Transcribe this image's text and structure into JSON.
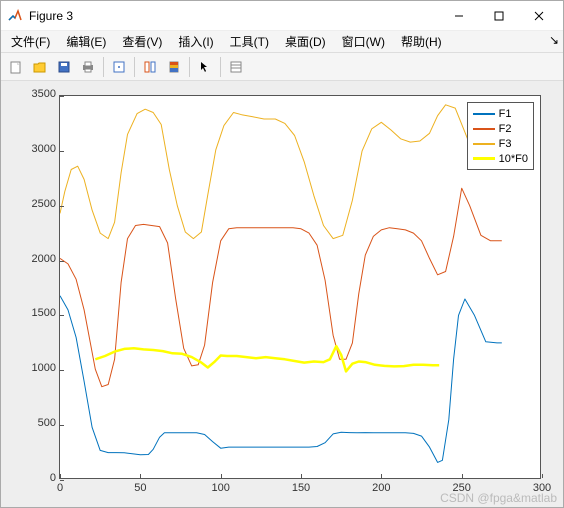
{
  "window": {
    "title": "Figure 3"
  },
  "menu": {
    "items": [
      "文件(F)",
      "编辑(E)",
      "查看(V)",
      "插入(I)",
      "工具(T)",
      "桌面(D)",
      "窗口(W)",
      "帮助(H)"
    ]
  },
  "toolbar": {
    "icons": [
      "new",
      "open",
      "save",
      "print",
      "sep",
      "edit",
      "sep",
      "link",
      "colorbar",
      "sep",
      "cursor",
      "sep",
      "datatip"
    ]
  },
  "chart": {
    "type": "line",
    "background_color": "#ffffff",
    "plot_bg": "#eeeeee",
    "axes_color": "#555555",
    "xlim": [
      0,
      300
    ],
    "ylim": [
      0,
      3500
    ],
    "xticks": [
      0,
      50,
      100,
      150,
      200,
      250,
      300
    ],
    "yticks": [
      0,
      500,
      1000,
      1500,
      2000,
      2500,
      3000,
      3500
    ],
    "tick_fontsize": 11,
    "legend": {
      "position": "northeast",
      "items": [
        {
          "label": "F1",
          "color": "#0072bd"
        },
        {
          "label": "F2",
          "color": "#d95319"
        },
        {
          "label": "F3",
          "color": "#edb120"
        },
        {
          "label": "10*F0",
          "color": "#ffff00"
        }
      ]
    },
    "series": [
      {
        "name": "F1",
        "color": "#0072bd",
        "linewidth": 1,
        "data": [
          [
            0,
            1680
          ],
          [
            5,
            1550
          ],
          [
            10,
            1300
          ],
          [
            15,
            900
          ],
          [
            20,
            480
          ],
          [
            25,
            270
          ],
          [
            30,
            250
          ],
          [
            35,
            250
          ],
          [
            40,
            248
          ],
          [
            45,
            240
          ],
          [
            50,
            230
          ],
          [
            55,
            232
          ],
          [
            58,
            280
          ],
          [
            62,
            390
          ],
          [
            65,
            430
          ],
          [
            70,
            430
          ],
          [
            75,
            430
          ],
          [
            80,
            430
          ],
          [
            85,
            430
          ],
          [
            90,
            415
          ],
          [
            95,
            350
          ],
          [
            100,
            290
          ],
          [
            105,
            300
          ],
          [
            110,
            300
          ],
          [
            115,
            300
          ],
          [
            120,
            300
          ],
          [
            125,
            300
          ],
          [
            130,
            300
          ],
          [
            135,
            300
          ],
          [
            140,
            300
          ],
          [
            145,
            300
          ],
          [
            150,
            300
          ],
          [
            155,
            300
          ],
          [
            160,
            305
          ],
          [
            165,
            340
          ],
          [
            170,
            420
          ],
          [
            175,
            435
          ],
          [
            180,
            432
          ],
          [
            185,
            430
          ],
          [
            190,
            432
          ],
          [
            195,
            430
          ],
          [
            200,
            430
          ],
          [
            205,
            430
          ],
          [
            210,
            430
          ],
          [
            215,
            430
          ],
          [
            220,
            425
          ],
          [
            225,
            400
          ],
          [
            230,
            300
          ],
          [
            235,
            160
          ],
          [
            238,
            180
          ],
          [
            242,
            550
          ],
          [
            245,
            1100
          ],
          [
            248,
            1500
          ],
          [
            252,
            1650
          ],
          [
            258,
            1500
          ],
          [
            265,
            1260
          ],
          [
            272,
            1250
          ],
          [
            275,
            1250
          ]
        ]
      },
      {
        "name": "F2",
        "color": "#d95319",
        "linewidth": 1,
        "data": [
          [
            0,
            2020
          ],
          [
            5,
            1970
          ],
          [
            10,
            1830
          ],
          [
            15,
            1550
          ],
          [
            22,
            1010
          ],
          [
            26,
            850
          ],
          [
            30,
            870
          ],
          [
            34,
            1100
          ],
          [
            38,
            1800
          ],
          [
            42,
            2200
          ],
          [
            47,
            2320
          ],
          [
            52,
            2330
          ],
          [
            57,
            2320
          ],
          [
            62,
            2310
          ],
          [
            67,
            2160
          ],
          [
            72,
            1650
          ],
          [
            77,
            1200
          ],
          [
            82,
            1040
          ],
          [
            86,
            1050
          ],
          [
            90,
            1230
          ],
          [
            95,
            1800
          ],
          [
            100,
            2180
          ],
          [
            105,
            2290
          ],
          [
            110,
            2300
          ],
          [
            115,
            2300
          ],
          [
            120,
            2300
          ],
          [
            125,
            2300
          ],
          [
            130,
            2300
          ],
          [
            135,
            2300
          ],
          [
            140,
            2300
          ],
          [
            145,
            2300
          ],
          [
            150,
            2290
          ],
          [
            155,
            2250
          ],
          [
            160,
            2140
          ],
          [
            165,
            1820
          ],
          [
            170,
            1320
          ],
          [
            174,
            1100
          ],
          [
            178,
            1100
          ],
          [
            182,
            1250
          ],
          [
            186,
            1700
          ],
          [
            190,
            2050
          ],
          [
            195,
            2220
          ],
          [
            200,
            2280
          ],
          [
            205,
            2300
          ],
          [
            210,
            2290
          ],
          [
            215,
            2280
          ],
          [
            220,
            2250
          ],
          [
            225,
            2180
          ],
          [
            230,
            2020
          ],
          [
            235,
            1870
          ],
          [
            240,
            1900
          ],
          [
            245,
            2220
          ],
          [
            250,
            2660
          ],
          [
            255,
            2500
          ],
          [
            262,
            2230
          ],
          [
            268,
            2180
          ],
          [
            275,
            2180
          ]
        ]
      },
      {
        "name": "F3",
        "color": "#edb120",
        "linewidth": 1,
        "data": [
          [
            0,
            2430
          ],
          [
            3,
            2630
          ],
          [
            7,
            2830
          ],
          [
            11,
            2860
          ],
          [
            15,
            2740
          ],
          [
            20,
            2460
          ],
          [
            25,
            2250
          ],
          [
            30,
            2200
          ],
          [
            34,
            2350
          ],
          [
            38,
            2800
          ],
          [
            42,
            3150
          ],
          [
            48,
            3340
          ],
          [
            53,
            3380
          ],
          [
            58,
            3350
          ],
          [
            63,
            3240
          ],
          [
            68,
            2830
          ],
          [
            73,
            2500
          ],
          [
            78,
            2260
          ],
          [
            83,
            2200
          ],
          [
            88,
            2260
          ],
          [
            92,
            2600
          ],
          [
            97,
            3010
          ],
          [
            102,
            3230
          ],
          [
            108,
            3350
          ],
          [
            113,
            3330
          ],
          [
            120,
            3310
          ],
          [
            127,
            3290
          ],
          [
            134,
            3290
          ],
          [
            140,
            3250
          ],
          [
            146,
            3140
          ],
          [
            152,
            2900
          ],
          [
            158,
            2590
          ],
          [
            164,
            2320
          ],
          [
            170,
            2200
          ],
          [
            176,
            2230
          ],
          [
            182,
            2550
          ],
          [
            188,
            3000
          ],
          [
            194,
            3200
          ],
          [
            200,
            3260
          ],
          [
            206,
            3190
          ],
          [
            212,
            3110
          ],
          [
            218,
            3080
          ],
          [
            224,
            3090
          ],
          [
            230,
            3160
          ],
          [
            235,
            3320
          ],
          [
            240,
            3420
          ],
          [
            246,
            3390
          ],
          [
            252,
            3170
          ],
          [
            259,
            2910
          ],
          [
            266,
            2840
          ],
          [
            275,
            2830
          ]
        ]
      },
      {
        "name": "10*F0",
        "color": "#ffff00",
        "linewidth": 2.5,
        "data": [
          [
            22,
            1100
          ],
          [
            28,
            1130
          ],
          [
            34,
            1170
          ],
          [
            40,
            1195
          ],
          [
            46,
            1200
          ],
          [
            52,
            1190
          ],
          [
            58,
            1185
          ],
          [
            64,
            1175
          ],
          [
            70,
            1155
          ],
          [
            76,
            1150
          ],
          [
            82,
            1120
          ],
          [
            88,
            1070
          ],
          [
            92,
            1025
          ],
          [
            96,
            1075
          ],
          [
            100,
            1135
          ],
          [
            104,
            1130
          ],
          [
            110,
            1130
          ],
          [
            116,
            1120
          ],
          [
            122,
            1110
          ],
          [
            128,
            1120
          ],
          [
            134,
            1110
          ],
          [
            140,
            1100
          ],
          [
            146,
            1085
          ],
          [
            152,
            1070
          ],
          [
            158,
            1080
          ],
          [
            164,
            1075
          ],
          [
            168,
            1100
          ],
          [
            172,
            1220
          ],
          [
            175,
            1140
          ],
          [
            178,
            990
          ],
          [
            182,
            1060
          ],
          [
            186,
            1080
          ],
          [
            190,
            1075
          ],
          [
            196,
            1050
          ],
          [
            202,
            1040
          ],
          [
            208,
            1035
          ],
          [
            214,
            1038
          ],
          [
            220,
            1050
          ],
          [
            226,
            1050
          ],
          [
            232,
            1045
          ],
          [
            236,
            1045
          ]
        ]
      }
    ]
  },
  "watermark": "CSDN @fpga&matlab"
}
